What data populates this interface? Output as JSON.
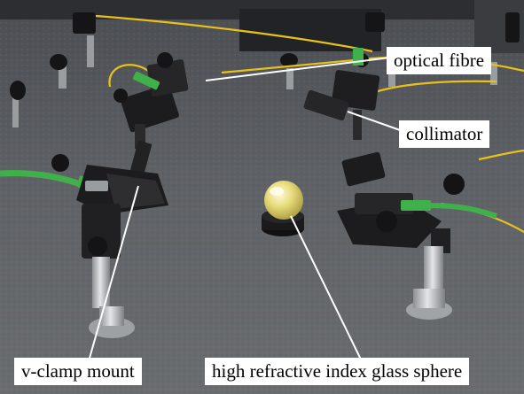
{
  "labels": {
    "optical_fibre": "optical fibre",
    "collimator": "collimator",
    "v_clamp_mount": "v-clamp mount",
    "glass_sphere": "high refractive index glass sphere"
  },
  "colors": {
    "table_surface": "#5b5e62",
    "fibre_jacket": "#e8c21a",
    "connector_green": "#3fb04a",
    "anodized_black": "#1c1c1e",
    "post_steel": "#b9bcbf",
    "sphere_glass": "#e6dd83",
    "callout_bg": "#ffffff"
  }
}
